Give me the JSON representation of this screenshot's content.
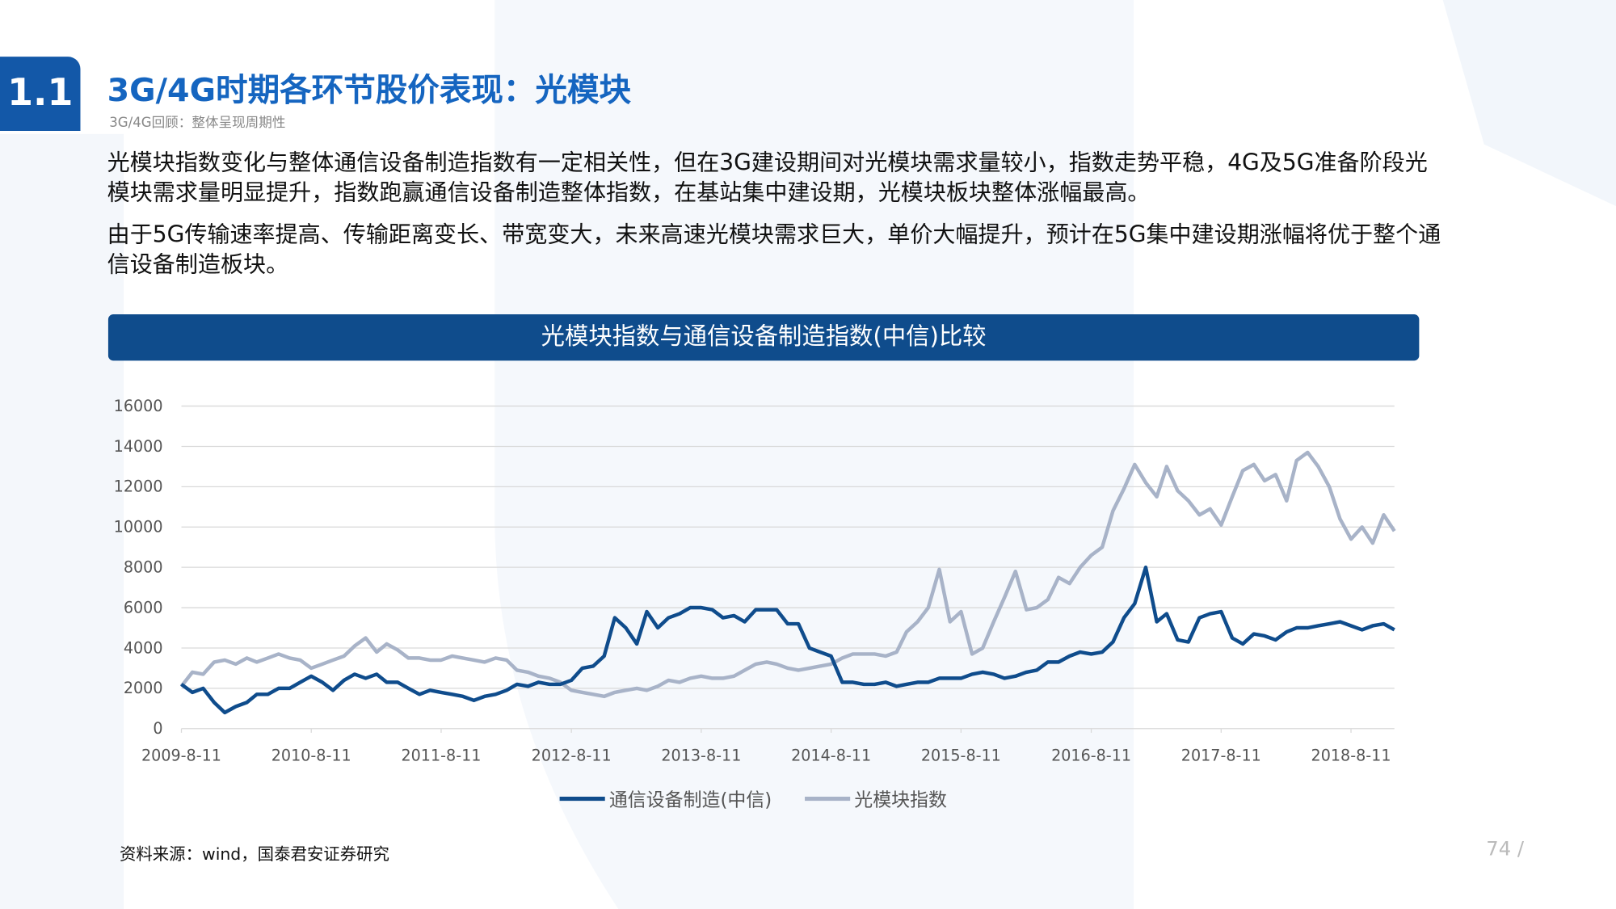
{
  "header": {
    "badge": "1.1",
    "title": "3G/4G时期各环节股价表现：光模块",
    "subtitle": "3G/4G回顾：整体呈现周期性"
  },
  "paragraphs": [
    "光模块指数变化与整体通信设备制造指数有一定相关性，但在3G建设期间对光模块需求量较小，指数走势平稳，4G及5G准备阶段光模块需求量明显提升，指数跑赢通信设备制造整体指数，在基站集中建设期，光模块板块整体涨幅最高。",
    "由于5G传输速率提高、传输距离变长、带宽变大，未来高速光模块需求巨大，单价大幅提升，预计在5G集中建设期涨幅将优于整个通信设备制造板块。"
  ],
  "source": "资料来源：wind，国泰君安证券研究",
  "page_number": "74 /",
  "chart_data": {
    "type": "line",
    "title": "光模块指数与通信设备制造指数(中信)比较",
    "x": [
      "2009-8-11",
      "2009-9-11",
      "2009-10-11",
      "2009-11-11",
      "2009-12-11",
      "2010-1-11",
      "2010-2-11",
      "2010-3-11",
      "2010-4-11",
      "2010-5-11",
      "2010-6-11",
      "2010-7-11",
      "2010-8-11",
      "2010-9-11",
      "2010-10-11",
      "2010-11-11",
      "2010-12-11",
      "2011-1-11",
      "2011-2-11",
      "2011-3-11",
      "2011-4-11",
      "2011-5-11",
      "2011-6-11",
      "2011-7-11",
      "2011-8-11",
      "2011-9-11",
      "2011-10-11",
      "2011-11-11",
      "2011-12-11",
      "2012-1-11",
      "2012-2-11",
      "2012-3-11",
      "2012-4-11",
      "2012-5-11",
      "2012-6-11",
      "2012-7-11",
      "2012-8-11",
      "2012-9-11",
      "2012-10-11",
      "2012-11-11",
      "2012-12-11",
      "2013-1-11",
      "2013-2-11",
      "2013-3-11",
      "2013-4-11",
      "2013-5-11",
      "2013-6-11",
      "2013-7-11",
      "2013-8-11",
      "2013-9-11",
      "2013-10-11",
      "2013-11-11",
      "2013-12-11",
      "2014-1-11",
      "2014-2-11",
      "2014-3-11",
      "2014-4-11",
      "2014-5-11",
      "2014-6-11",
      "2014-7-11",
      "2014-8-11",
      "2014-9-11",
      "2014-10-11",
      "2014-11-11",
      "2014-12-11",
      "2015-1-11",
      "2015-2-11",
      "2015-3-11",
      "2015-4-11",
      "2015-5-11",
      "2015-6-11",
      "2015-7-11",
      "2015-8-11",
      "2015-9-11",
      "2015-10-11",
      "2015-11-11",
      "2015-12-11",
      "2016-1-11",
      "2016-2-11",
      "2016-3-11",
      "2016-4-11",
      "2016-5-11",
      "2016-6-11",
      "2016-7-11",
      "2016-8-11",
      "2016-9-11",
      "2016-10-11",
      "2016-11-11",
      "2016-12-11",
      "2017-1-11",
      "2017-2-11",
      "2017-3-11",
      "2017-4-11",
      "2017-5-11",
      "2017-6-11",
      "2017-7-11",
      "2017-8-11",
      "2017-9-11",
      "2017-10-11",
      "2017-11-11",
      "2017-12-11",
      "2018-1-11",
      "2018-2-11",
      "2018-3-11",
      "2018-4-11",
      "2018-5-11",
      "2018-6-11",
      "2018-7-11",
      "2018-8-11",
      "2018-9-11",
      "2018-10-11",
      "2018-11-11",
      "2018-12-11"
    ],
    "series": [
      {
        "name": "通信设备制造(中信)",
        "color": "#0f4c8c",
        "values": [
          2200,
          1800,
          2000,
          1300,
          800,
          1100,
          1300,
          1700,
          1700,
          2000,
          2000,
          2300,
          2600,
          2300,
          1900,
          2400,
          2700,
          2500,
          2700,
          2300,
          2300,
          2000,
          1700,
          1900,
          1800,
          1700,
          1600,
          1400,
          1600,
          1700,
          1900,
          2200,
          2100,
          2300,
          2200,
          2200,
          2400,
          3000,
          3100,
          3600,
          5500,
          5000,
          4200,
          5800,
          5000,
          5500,
          5700,
          6000,
          6000,
          5900,
          5500,
          5600,
          5300,
          5900,
          5900,
          5900,
          5200,
          5200,
          4000,
          3800,
          3600,
          2300,
          2300,
          2200,
          2200,
          2300,
          2100,
          2200,
          2300,
          2300,
          2500,
          2500,
          2500,
          2700,
          2800,
          2700,
          2500,
          2600,
          2800,
          2900,
          3300,
          3300,
          3600,
          3800,
          3700,
          3800,
          4300,
          5500,
          6200,
          8000,
          5300,
          5700,
          4400,
          4300,
          5500,
          5700,
          5800,
          4500,
          4200,
          4700,
          4600,
          4400,
          4800,
          5000,
          5000,
          5100,
          5200,
          5300,
          5100,
          4900,
          5100,
          5200,
          4900
        ]
      },
      {
        "name": "光模块指数",
        "color": "#a8b3c8",
        "values": [
          2100,
          2800,
          2700,
          3300,
          3400,
          3200,
          3500,
          3300,
          3500,
          3700,
          3500,
          3400,
          3000,
          3200,
          3400,
          3600,
          4100,
          4500,
          3800,
          4200,
          3900,
          3500,
          3500,
          3400,
          3400,
          3600,
          3500,
          3400,
          3300,
          3500,
          3400,
          2900,
          2800,
          2600,
          2500,
          2300,
          1900,
          1800,
          1700,
          1600,
          1800,
          1900,
          2000,
          1900,
          2100,
          2400,
          2300,
          2500,
          2600,
          2500,
          2500,
          2600,
          2900,
          3200,
          3300,
          3200,
          3000,
          2900,
          3000,
          3100,
          3200,
          3500,
          3700,
          3700,
          3700,
          3600,
          3800,
          4800,
          5300,
          6000,
          7900,
          5300,
          5800,
          3700,
          4000,
          5300,
          6500,
          7800,
          5900,
          6000,
          6400,
          7500,
          7200,
          8000,
          8600,
          9000,
          10800,
          11900,
          13100,
          12200,
          11500,
          13000,
          11800,
          11300,
          10600,
          10900,
          10100,
          11500,
          12800,
          13100,
          12300,
          12600,
          11300,
          13300,
          13700,
          13000,
          12000,
          10400,
          9400,
          10000,
          9200,
          10600,
          9800
        ]
      }
    ],
    "xlim": [
      "2009-8-11",
      "2018-12-11"
    ],
    "xticks": [
      "2009-8-11",
      "2010-8-11",
      "2011-8-11",
      "2012-8-11",
      "2013-8-11",
      "2014-8-11",
      "2015-8-11",
      "2016-8-11",
      "2017-8-11",
      "2018-8-11"
    ],
    "ylim": [
      0,
      16000
    ],
    "yticks": [
      0,
      2000,
      4000,
      6000,
      8000,
      10000,
      12000,
      14000,
      16000
    ],
    "grid": true,
    "legend": "bottom"
  }
}
